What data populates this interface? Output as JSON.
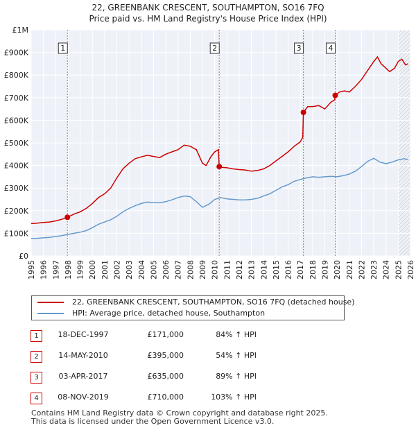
{
  "title_line1": "22, GREENBANK CRESCENT, SOUTHAMPTON, SO16 7FQ",
  "title_line2": "Price paid vs. HM Land Registry's House Price Index (HPI)",
  "colors": {
    "price_paid": "#cc0000",
    "hpi": "#6699cc",
    "marker_line": "#e06060",
    "grid": "#dddddd",
    "plot_bg": "#eef2f8"
  },
  "legend": {
    "price_paid_label": "22, GREENBANK CRESCENT, SOUTHAMPTON, SO16 7FQ (detached house)",
    "hpi_label": "HPI: Average price, detached house, Southampton"
  },
  "sales": [
    {
      "n": "1",
      "date": "18-DEC-1997",
      "price": "£171,000",
      "hpi": "84% ↑ HPI"
    },
    {
      "n": "2",
      "date": "14-MAY-2010",
      "price": "£395,000",
      "hpi": "54% ↑ HPI"
    },
    {
      "n": "3",
      "date": "03-APR-2017",
      "price": "£635,000",
      "hpi": "89% ↑ HPI"
    },
    {
      "n": "4",
      "date": "08-NOV-2019",
      "price": "£710,000",
      "hpi": "103% ↑ HPI"
    }
  ],
  "footer_line1": "Contains HM Land Registry data © Crown copyright and database right 2025.",
  "footer_line2": "This data is licensed under the Open Government Licence v3.0.",
  "chart_data": {
    "type": "line",
    "title": "22, GREENBANK CRESCENT, SOUTHAMPTON, SO16 7FQ",
    "xlabel": "",
    "ylabel": "",
    "xlim": [
      1995,
      2026
    ],
    "ylim": [
      0,
      1000000
    ],
    "y_ticks": [
      0,
      100000,
      200000,
      300000,
      400000,
      500000,
      600000,
      700000,
      800000,
      900000,
      1000000
    ],
    "y_tick_labels": [
      "£0",
      "£100K",
      "£200K",
      "£300K",
      "£400K",
      "£500K",
      "£600K",
      "£700K",
      "£800K",
      "£900K",
      "£1M"
    ],
    "x_ticks": [
      1995,
      1996,
      1997,
      1998,
      1999,
      2000,
      2001,
      2002,
      2003,
      2004,
      2005,
      2006,
      2007,
      2008,
      2009,
      2010,
      2011,
      2012,
      2013,
      2014,
      2015,
      2016,
      2017,
      2018,
      2019,
      2020,
      2021,
      2022,
      2023,
      2024,
      2025,
      2026
    ],
    "sale_markers": [
      {
        "label": "1",
        "x": 1997.96,
        "y": 171000
      },
      {
        "label": "2",
        "x": 2010.37,
        "y": 395000
      },
      {
        "label": "3",
        "x": 2017.25,
        "y": 635000
      },
      {
        "label": "4",
        "x": 2019.85,
        "y": 710000
      }
    ],
    "hatch_from": 2025.0,
    "series": [
      {
        "name": "22, GREENBANK CRESCENT, SOUTHAMPTON, SO16 7FQ (detached house)",
        "x": [
          1995.0,
          1995.5,
          1996.0,
          1996.5,
          1997.0,
          1997.5,
          1997.96,
          1998.5,
          1999.0,
          1999.5,
          2000.0,
          2000.5,
          2001.0,
          2001.5,
          2002.0,
          2002.5,
          2003.0,
          2003.5,
          2004.0,
          2004.5,
          2005.0,
          2005.5,
          2006.0,
          2006.5,
          2007.0,
          2007.5,
          2008.0,
          2008.5,
          2009.0,
          2009.3,
          2009.7,
          2010.0,
          2010.3,
          2010.37,
          2010.6,
          2011.0,
          2011.5,
          2012.0,
          2012.5,
          2013.0,
          2013.5,
          2014.0,
          2014.5,
          2015.0,
          2015.5,
          2016.0,
          2016.5,
          2017.0,
          2017.2,
          2017.25,
          2017.6,
          2018.0,
          2018.5,
          2019.0,
          2019.5,
          2019.8,
          2019.85,
          2020.2,
          2020.6,
          2021.0,
          2021.5,
          2022.0,
          2022.5,
          2023.0,
          2023.3,
          2023.6,
          2024.0,
          2024.3,
          2024.7,
          2025.0,
          2025.3,
          2025.6,
          2025.8
        ],
        "values": [
          143000,
          145000,
          148000,
          150000,
          155000,
          162000,
          171000,
          185000,
          195000,
          210000,
          232000,
          258000,
          275000,
          300000,
          345000,
          385000,
          410000,
          430000,
          438000,
          445000,
          440000,
          435000,
          450000,
          460000,
          470000,
          490000,
          485000,
          470000,
          410000,
          400000,
          440000,
          460000,
          470000,
          395000,
          392000,
          390000,
          385000,
          382000,
          380000,
          375000,
          378000,
          385000,
          400000,
          420000,
          440000,
          460000,
          485000,
          505000,
          525000,
          635000,
          660000,
          660000,
          665000,
          650000,
          680000,
          690000,
          710000,
          725000,
          730000,
          725000,
          750000,
          780000,
          820000,
          860000,
          880000,
          850000,
          830000,
          815000,
          830000,
          860000,
          870000,
          845000,
          850000
        ]
      },
      {
        "name": "HPI: Average price, detached house, Southampton",
        "x": [
          1995.0,
          1995.5,
          1996.0,
          1996.5,
          1997.0,
          1997.5,
          1998.0,
          1998.5,
          1999.0,
          1999.5,
          2000.0,
          2000.5,
          2001.0,
          2001.5,
          2002.0,
          2002.5,
          2003.0,
          2003.5,
          2004.0,
          2004.5,
          2005.0,
          2005.5,
          2006.0,
          2006.5,
          2007.0,
          2007.5,
          2008.0,
          2008.5,
          2009.0,
          2009.5,
          2010.0,
          2010.5,
          2011.0,
          2011.5,
          2012.0,
          2012.5,
          2013.0,
          2013.5,
          2014.0,
          2014.5,
          2015.0,
          2015.5,
          2016.0,
          2016.5,
          2017.0,
          2017.5,
          2018.0,
          2018.5,
          2019.0,
          2019.5,
          2020.0,
          2020.5,
          2021.0,
          2021.5,
          2022.0,
          2022.5,
          2023.0,
          2023.5,
          2024.0,
          2024.5,
          2025.0,
          2025.5,
          2025.8
        ],
        "values": [
          77000,
          78000,
          80000,
          82000,
          86000,
          90000,
          95000,
          100000,
          105000,
          112000,
          125000,
          140000,
          150000,
          160000,
          175000,
          195000,
          210000,
          222000,
          232000,
          238000,
          236000,
          235000,
          240000,
          248000,
          258000,
          265000,
          262000,
          240000,
          215000,
          228000,
          250000,
          258000,
          252000,
          250000,
          248000,
          248000,
          250000,
          255000,
          265000,
          275000,
          290000,
          305000,
          315000,
          330000,
          338000,
          345000,
          350000,
          348000,
          350000,
          352000,
          350000,
          355000,
          362000,
          375000,
          395000,
          418000,
          432000,
          415000,
          408000,
          415000,
          425000,
          430000,
          425000
        ]
      }
    ]
  }
}
